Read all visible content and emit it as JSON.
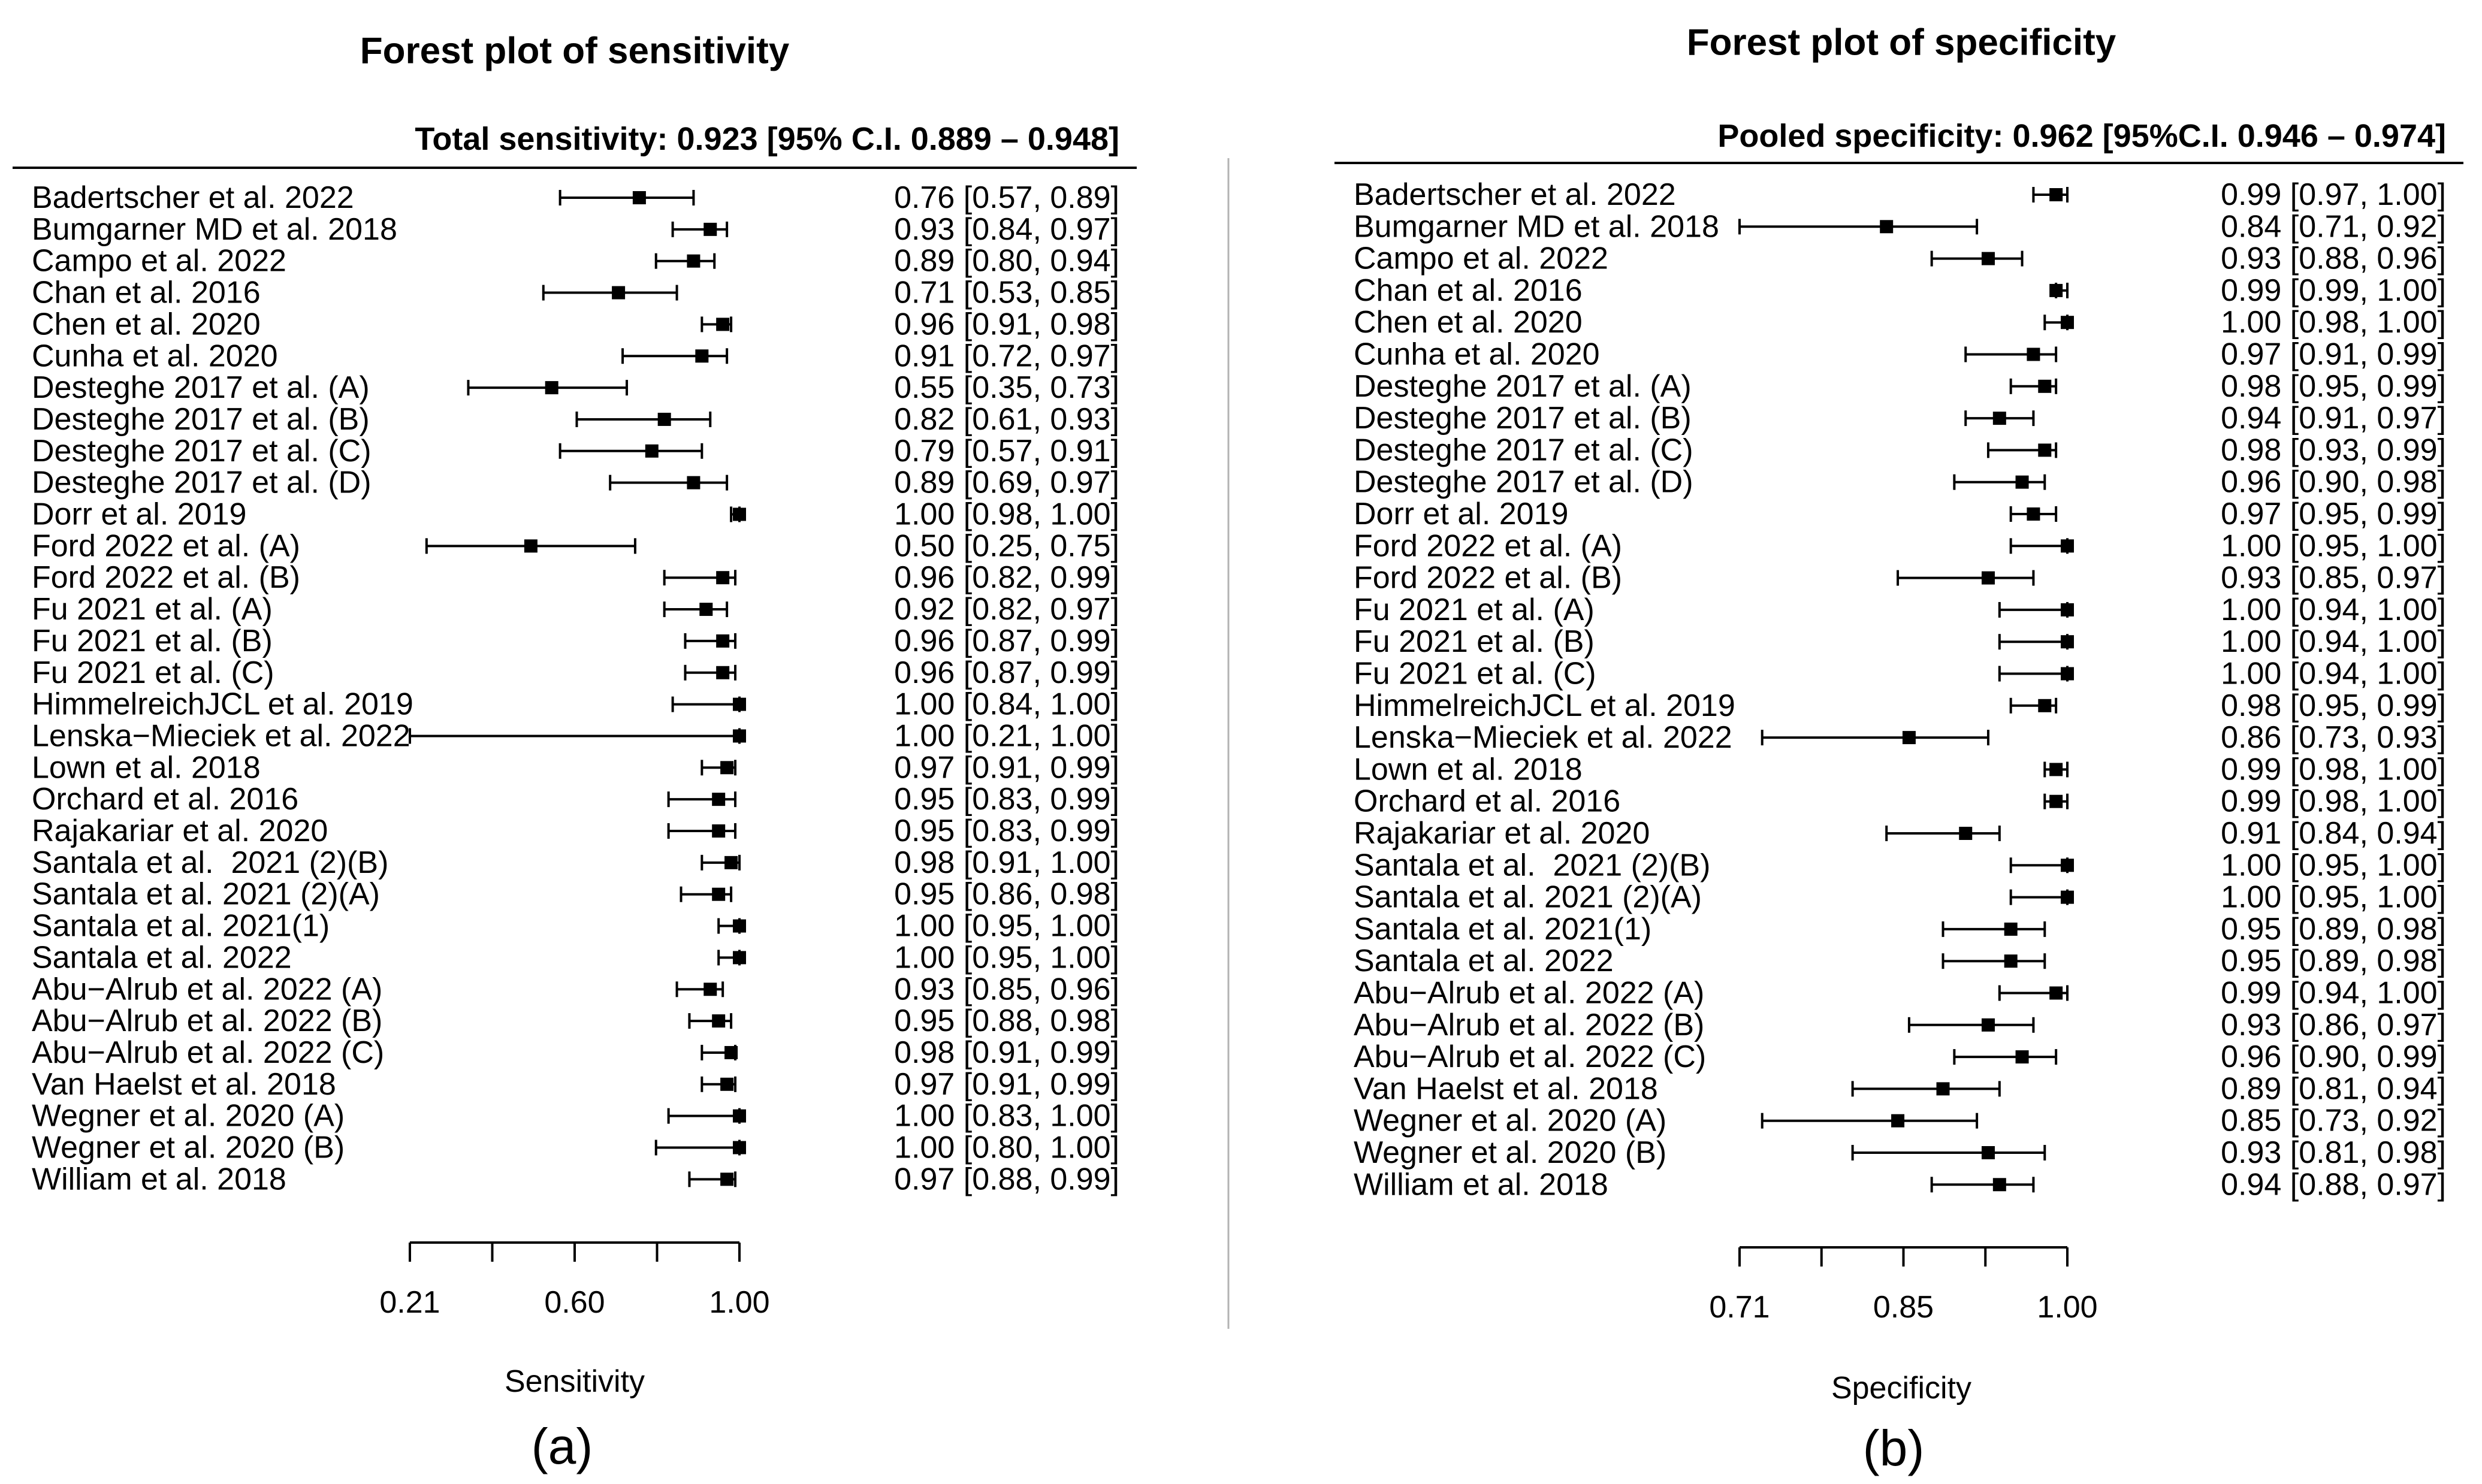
{
  "chart_data": [
    {
      "type": "scatter",
      "title": "Forest plot of sensitivity",
      "summary": "Total sensitivity: 0.923 [95% C.I. 0.889 – 0.948]",
      "xlabel": "Sensitivity",
      "caption": "(a)",
      "xlim": [
        0.21,
        1.0
      ],
      "xticks": [
        0.21,
        0.4075,
        0.605,
        0.8025,
        1.0
      ],
      "xtick_labels": [
        {
          "value": 0.21,
          "label": "0.21"
        },
        {
          "value": 0.605,
          "label": "0.60"
        },
        {
          "value": 1.0,
          "label": "1.00"
        }
      ],
      "studies": [
        {
          "label": "Badertscher et al. 2022",
          "estimate": 0.76,
          "ci_low": 0.57,
          "ci_high": 0.89,
          "ci_text": "0.76 [0.57, 0.89]"
        },
        {
          "label": "Bumgarner MD et al. 2018",
          "estimate": 0.93,
          "ci_low": 0.84,
          "ci_high": 0.97,
          "ci_text": "0.93 [0.84, 0.97]"
        },
        {
          "label": "Campo et al. 2022",
          "estimate": 0.89,
          "ci_low": 0.8,
          "ci_high": 0.94,
          "ci_text": "0.89 [0.80, 0.94]"
        },
        {
          "label": "Chan et al. 2016",
          "estimate": 0.71,
          "ci_low": 0.53,
          "ci_high": 0.85,
          "ci_text": "0.71 [0.53, 0.85]"
        },
        {
          "label": "Chen et al. 2020",
          "estimate": 0.96,
          "ci_low": 0.91,
          "ci_high": 0.98,
          "ci_text": "0.96 [0.91, 0.98]"
        },
        {
          "label": "Cunha et al. 2020",
          "estimate": 0.91,
          "ci_low": 0.72,
          "ci_high": 0.97,
          "ci_text": "0.91 [0.72, 0.97]"
        },
        {
          "label": "Desteghe 2017 et al. (A)",
          "estimate": 0.55,
          "ci_low": 0.35,
          "ci_high": 0.73,
          "ci_text": "0.55 [0.35, 0.73]"
        },
        {
          "label": "Desteghe 2017 et al. (B)",
          "estimate": 0.82,
          "ci_low": 0.61,
          "ci_high": 0.93,
          "ci_text": "0.82 [0.61, 0.93]"
        },
        {
          "label": "Desteghe 2017 et al. (C)",
          "estimate": 0.79,
          "ci_low": 0.57,
          "ci_high": 0.91,
          "ci_text": "0.79 [0.57, 0.91]"
        },
        {
          "label": "Desteghe 2017 et al. (D)",
          "estimate": 0.89,
          "ci_low": 0.69,
          "ci_high": 0.97,
          "ci_text": "0.89 [0.69, 0.97]"
        },
        {
          "label": "Dorr et al. 2019",
          "estimate": 1.0,
          "ci_low": 0.98,
          "ci_high": 1.0,
          "ci_text": "1.00 [0.98, 1.00]"
        },
        {
          "label": "Ford 2022 et al. (A)",
          "estimate": 0.5,
          "ci_low": 0.25,
          "ci_high": 0.75,
          "ci_text": "0.50 [0.25, 0.75]"
        },
        {
          "label": "Ford 2022 et al. (B)",
          "estimate": 0.96,
          "ci_low": 0.82,
          "ci_high": 0.99,
          "ci_text": "0.96 [0.82, 0.99]"
        },
        {
          "label": "Fu 2021 et al. (A)",
          "estimate": 0.92,
          "ci_low": 0.82,
          "ci_high": 0.97,
          "ci_text": "0.92 [0.82, 0.97]"
        },
        {
          "label": "Fu 2021 et al. (B)",
          "estimate": 0.96,
          "ci_low": 0.87,
          "ci_high": 0.99,
          "ci_text": "0.96 [0.87, 0.99]"
        },
        {
          "label": "Fu 2021 et al. (C)",
          "estimate": 0.96,
          "ci_low": 0.87,
          "ci_high": 0.99,
          "ci_text": "0.96 [0.87, 0.99]"
        },
        {
          "label": "HimmelreichJCL et al. 2019",
          "estimate": 1.0,
          "ci_low": 0.84,
          "ci_high": 1.0,
          "ci_text": "1.00 [0.84, 1.00]"
        },
        {
          "label": "Lenska−Mieciek et al. 2022",
          "estimate": 1.0,
          "ci_low": 0.21,
          "ci_high": 1.0,
          "ci_text": "1.00 [0.21, 1.00]"
        },
        {
          "label": "Lown et al. 2018",
          "estimate": 0.97,
          "ci_low": 0.91,
          "ci_high": 0.99,
          "ci_text": "0.97 [0.91, 0.99]"
        },
        {
          "label": "Orchard et al. 2016",
          "estimate": 0.95,
          "ci_low": 0.83,
          "ci_high": 0.99,
          "ci_text": "0.95 [0.83, 0.99]"
        },
        {
          "label": "Rajakariar et al. 2020",
          "estimate": 0.95,
          "ci_low": 0.83,
          "ci_high": 0.99,
          "ci_text": "0.95 [0.83, 0.99]"
        },
        {
          "label": "Santala et al.  2021 (2)(B)",
          "estimate": 0.98,
          "ci_low": 0.91,
          "ci_high": 1.0,
          "ci_text": "0.98 [0.91, 1.00]"
        },
        {
          "label": "Santala et al. 2021 (2)(A)",
          "estimate": 0.95,
          "ci_low": 0.86,
          "ci_high": 0.98,
          "ci_text": "0.95 [0.86, 0.98]"
        },
        {
          "label": "Santala et al. 2021(1)",
          "estimate": 1.0,
          "ci_low": 0.95,
          "ci_high": 1.0,
          "ci_text": "1.00 [0.95, 1.00]"
        },
        {
          "label": "Santala et al. 2022",
          "estimate": 1.0,
          "ci_low": 0.95,
          "ci_high": 1.0,
          "ci_text": "1.00 [0.95, 1.00]"
        },
        {
          "label": "Abu−Alrub et al. 2022 (A)",
          "estimate": 0.93,
          "ci_low": 0.85,
          "ci_high": 0.96,
          "ci_text": "0.93 [0.85, 0.96]"
        },
        {
          "label": "Abu−Alrub et al. 2022 (B)",
          "estimate": 0.95,
          "ci_low": 0.88,
          "ci_high": 0.98,
          "ci_text": "0.95 [0.88, 0.98]"
        },
        {
          "label": "Abu−Alrub et al. 2022 (C)",
          "estimate": 0.98,
          "ci_low": 0.91,
          "ci_high": 0.99,
          "ci_text": "0.98 [0.91, 0.99]"
        },
        {
          "label": "Van Haelst et al. 2018",
          "estimate": 0.97,
          "ci_low": 0.91,
          "ci_high": 0.99,
          "ci_text": "0.97 [0.91, 0.99]"
        },
        {
          "label": "Wegner et al. 2020 (A)",
          "estimate": 1.0,
          "ci_low": 0.83,
          "ci_high": 1.0,
          "ci_text": "1.00 [0.83, 1.00]"
        },
        {
          "label": "Wegner et al. 2020 (B)",
          "estimate": 1.0,
          "ci_low": 0.8,
          "ci_high": 1.0,
          "ci_text": "1.00 [0.80, 1.00]"
        },
        {
          "label": "William et al. 2018",
          "estimate": 0.97,
          "ci_low": 0.88,
          "ci_high": 0.99,
          "ci_text": "0.97 [0.88, 0.99]"
        }
      ]
    },
    {
      "type": "scatter",
      "title": "Forest plot of specificity",
      "summary": "Pooled specificity: 0.962 [95%C.I. 0.946 – 0.974]",
      "xlabel": "Specificity",
      "caption": "(b)",
      "xlim": [
        0.71,
        1.0
      ],
      "xticks": [
        0.71,
        0.7825,
        0.855,
        0.9275,
        1.0
      ],
      "xtick_labels": [
        {
          "value": 0.71,
          "label": "0.71"
        },
        {
          "value": 0.855,
          "label": "0.85"
        },
        {
          "value": 1.0,
          "label": "1.00"
        }
      ],
      "studies": [
        {
          "label": "Badertscher et al. 2022",
          "estimate": 0.99,
          "ci_low": 0.97,
          "ci_high": 1.0,
          "ci_text": "0.99 [0.97, 1.00]"
        },
        {
          "label": "Bumgarner MD et al. 2018",
          "estimate": 0.84,
          "ci_low": 0.71,
          "ci_high": 0.92,
          "ci_text": "0.84 [0.71, 0.92]"
        },
        {
          "label": "Campo et al. 2022",
          "estimate": 0.93,
          "ci_low": 0.88,
          "ci_high": 0.96,
          "ci_text": "0.93 [0.88, 0.96]"
        },
        {
          "label": "Chan et al. 2016",
          "estimate": 0.99,
          "ci_low": 0.99,
          "ci_high": 1.0,
          "ci_text": "0.99 [0.99, 1.00]"
        },
        {
          "label": "Chen et al. 2020",
          "estimate": 1.0,
          "ci_low": 0.98,
          "ci_high": 1.0,
          "ci_text": "1.00 [0.98, 1.00]"
        },
        {
          "label": "Cunha et al. 2020",
          "estimate": 0.97,
          "ci_low": 0.91,
          "ci_high": 0.99,
          "ci_text": "0.97 [0.91, 0.99]"
        },
        {
          "label": "Desteghe 2017 et al. (A)",
          "estimate": 0.98,
          "ci_low": 0.95,
          "ci_high": 0.99,
          "ci_text": "0.98 [0.95, 0.99]"
        },
        {
          "label": "Desteghe 2017 et al. (B)",
          "estimate": 0.94,
          "ci_low": 0.91,
          "ci_high": 0.97,
          "ci_text": "0.94 [0.91, 0.97]"
        },
        {
          "label": "Desteghe 2017 et al. (C)",
          "estimate": 0.98,
          "ci_low": 0.93,
          "ci_high": 0.99,
          "ci_text": "0.98 [0.93, 0.99]"
        },
        {
          "label": "Desteghe 2017 et al. (D)",
          "estimate": 0.96,
          "ci_low": 0.9,
          "ci_high": 0.98,
          "ci_text": "0.96 [0.90, 0.98]"
        },
        {
          "label": "Dorr et al. 2019",
          "estimate": 0.97,
          "ci_low": 0.95,
          "ci_high": 0.99,
          "ci_text": "0.97 [0.95, 0.99]"
        },
        {
          "label": "Ford 2022 et al. (A)",
          "estimate": 1.0,
          "ci_low": 0.95,
          "ci_high": 1.0,
          "ci_text": "1.00 [0.95, 1.00]"
        },
        {
          "label": "Ford 2022 et al. (B)",
          "estimate": 0.93,
          "ci_low": 0.85,
          "ci_high": 0.97,
          "ci_text": "0.93 [0.85, 0.97]"
        },
        {
          "label": "Fu 2021 et al. (A)",
          "estimate": 1.0,
          "ci_low": 0.94,
          "ci_high": 1.0,
          "ci_text": "1.00 [0.94, 1.00]"
        },
        {
          "label": "Fu 2021 et al. (B)",
          "estimate": 1.0,
          "ci_low": 0.94,
          "ci_high": 1.0,
          "ci_text": "1.00 [0.94, 1.00]"
        },
        {
          "label": "Fu 2021 et al. (C)",
          "estimate": 1.0,
          "ci_low": 0.94,
          "ci_high": 1.0,
          "ci_text": "1.00 [0.94, 1.00]"
        },
        {
          "label": "HimmelreichJCL et al. 2019",
          "estimate": 0.98,
          "ci_low": 0.95,
          "ci_high": 0.99,
          "ci_text": "0.98 [0.95, 0.99]"
        },
        {
          "label": "Lenska−Mieciek et al. 2022",
          "estimate": 0.86,
          "ci_low": 0.73,
          "ci_high": 0.93,
          "ci_text": "0.86 [0.73, 0.93]"
        },
        {
          "label": "Lown et al. 2018",
          "estimate": 0.99,
          "ci_low": 0.98,
          "ci_high": 1.0,
          "ci_text": "0.99 [0.98, 1.00]"
        },
        {
          "label": "Orchard et al. 2016",
          "estimate": 0.99,
          "ci_low": 0.98,
          "ci_high": 1.0,
          "ci_text": "0.99 [0.98, 1.00]"
        },
        {
          "label": "Rajakariar et al. 2020",
          "estimate": 0.91,
          "ci_low": 0.84,
          "ci_high": 0.94,
          "ci_text": "0.91 [0.84, 0.94]"
        },
        {
          "label": "Santala et al.  2021 (2)(B)",
          "estimate": 1.0,
          "ci_low": 0.95,
          "ci_high": 1.0,
          "ci_text": "1.00 [0.95, 1.00]"
        },
        {
          "label": "Santala et al. 2021 (2)(A)",
          "estimate": 1.0,
          "ci_low": 0.95,
          "ci_high": 1.0,
          "ci_text": "1.00 [0.95, 1.00]"
        },
        {
          "label": "Santala et al. 2021(1)",
          "estimate": 0.95,
          "ci_low": 0.89,
          "ci_high": 0.98,
          "ci_text": "0.95 [0.89, 0.98]"
        },
        {
          "label": "Santala et al. 2022",
          "estimate": 0.95,
          "ci_low": 0.89,
          "ci_high": 0.98,
          "ci_text": "0.95 [0.89, 0.98]"
        },
        {
          "label": "Abu−Alrub et al. 2022 (A)",
          "estimate": 0.99,
          "ci_low": 0.94,
          "ci_high": 1.0,
          "ci_text": "0.99 [0.94, 1.00]"
        },
        {
          "label": "Abu−Alrub et al. 2022 (B)",
          "estimate": 0.93,
          "ci_low": 0.86,
          "ci_high": 0.97,
          "ci_text": "0.93 [0.86, 0.97]"
        },
        {
          "label": "Abu−Alrub et al. 2022 (C)",
          "estimate": 0.96,
          "ci_low": 0.9,
          "ci_high": 0.99,
          "ci_text": "0.96 [0.90, 0.99]"
        },
        {
          "label": "Van Haelst et al. 2018",
          "estimate": 0.89,
          "ci_low": 0.81,
          "ci_high": 0.94,
          "ci_text": "0.89 [0.81, 0.94]"
        },
        {
          "label": "Wegner et al. 2020 (A)",
          "estimate": 0.85,
          "ci_low": 0.73,
          "ci_high": 0.92,
          "ci_text": "0.85 [0.73, 0.92]"
        },
        {
          "label": "Wegner et al. 2020 (B)",
          "estimate": 0.93,
          "ci_low": 0.81,
          "ci_high": 0.98,
          "ci_text": "0.93 [0.81, 0.98]"
        },
        {
          "label": "William et al. 2018",
          "estimate": 0.94,
          "ci_low": 0.88,
          "ci_high": 0.97,
          "ci_text": "0.94 [0.88, 0.97]"
        }
      ]
    }
  ]
}
